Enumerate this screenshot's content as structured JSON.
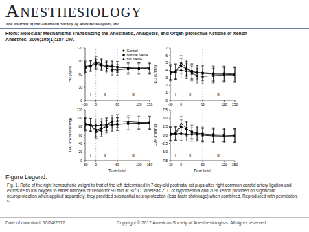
{
  "header": {
    "journal": "Anesthesiology",
    "subtitle": "The Journal of the American Society of Anesthesiologists, Inc."
  },
  "citation": {
    "title": "From: Molecular Mechanisms Transducing the Anesthetic, Analgesic, and Organ-protective Actions of Xenon",
    "reference": "Anesthes. 2006;105(1):187-197."
  },
  "chart_data": [
    {
      "type": "line",
      "y_label": "HR (bpm)",
      "x": [
        -30,
        -15,
        0,
        15,
        30,
        45,
        60,
        90,
        120,
        150
      ],
      "xlim": [
        -30,
        150
      ],
      "xticks": [
        -30,
        0,
        60,
        120,
        150
      ],
      "ylim": [
        0,
        120
      ],
      "yticks": [
        0,
        30,
        60,
        90,
        120
      ],
      "legend": "top-right",
      "reference_lines": [
        0,
        60
      ],
      "annotations": [
        {
          "text": "I",
          "x": -15,
          "y": 12
        },
        {
          "text": "II",
          "x": 25,
          "y": 12
        },
        {
          "text": "III",
          "x": 105,
          "y": 12
        }
      ],
      "series": [
        {
          "name": "Control",
          "color": "#000000",
          "marker": "circle",
          "values": [
            78,
            80,
            82,
            80,
            78,
            78,
            77,
            75,
            74,
            73
          ],
          "errors": [
            12,
            12,
            12,
            12,
            12,
            12,
            12,
            12,
            12,
            12
          ]
        },
        {
          "name": "Normal Saline",
          "color": "#000000",
          "marker": "square",
          "values": [
            76,
            78,
            85,
            82,
            80,
            78,
            76,
            74,
            72,
            72
          ],
          "errors": [
            12,
            12,
            12,
            12,
            12,
            12,
            12,
            12,
            12,
            12
          ]
        },
        {
          "name": "6% Saline",
          "color": "#000000",
          "marker": "triangle",
          "values": [
            75,
            79,
            88,
            84,
            74,
            70,
            70,
            72,
            74,
            75
          ],
          "errors": [
            12,
            12,
            12,
            12,
            12,
            12,
            12,
            12,
            12,
            12
          ]
        }
      ]
    },
    {
      "type": "line",
      "y_label": "CO (L/min)",
      "x": [
        -30,
        -15,
        0,
        15,
        30,
        45,
        60,
        90,
        120,
        150
      ],
      "xlim": [
        -30,
        150
      ],
      "xticks": [
        -30,
        0,
        60,
        120,
        150
      ],
      "ylim": [
        0,
        7
      ],
      "yticks": [
        0,
        1,
        2,
        3,
        4,
        5,
        6,
        7
      ],
      "reference_lines": [
        0,
        60
      ],
      "annotations": [
        {
          "text": "I",
          "x": -15,
          "y": 0.7
        },
        {
          "text": "II",
          "x": 25,
          "y": 0.7
        },
        {
          "text": "III",
          "x": 105,
          "y": 0.7
        }
      ],
      "series": [
        {
          "color": "#000000",
          "marker": "circle",
          "values": [
            3.8,
            3.9,
            4.0,
            3.9,
            3.8,
            3.7,
            3.7,
            3.6,
            3.6,
            3.5
          ],
          "errors": [
            1,
            1,
            1,
            1,
            1,
            1,
            1,
            1,
            1,
            1
          ]
        },
        {
          "color": "#000000",
          "marker": "square",
          "values": [
            3.7,
            3.8,
            4.6,
            4.2,
            3.9,
            3.7,
            3.6,
            3.5,
            3.5,
            3.4
          ],
          "errors": [
            1,
            1,
            1,
            1,
            1,
            1,
            1,
            1,
            1,
            1
          ]
        },
        {
          "color": "#000000",
          "marker": "triangle",
          "values": [
            3.6,
            3.8,
            5.0,
            4.4,
            3.6,
            3.3,
            3.2,
            3.3,
            3.4,
            3.4
          ],
          "errors": [
            1,
            1,
            1,
            1,
            1,
            1,
            1,
            1,
            1,
            1
          ]
        }
      ]
    },
    {
      "type": "line",
      "y_label": "TPC (ml/min/mmHg)",
      "x_label": "Time (min)",
      "x": [
        -30,
        -15,
        0,
        15,
        30,
        45,
        60,
        90,
        120,
        150
      ],
      "xlim": [
        -30,
        150
      ],
      "xticks": [
        -30,
        0,
        60,
        120,
        150
      ],
      "ylim": [
        0,
        120
      ],
      "yticks": [
        0,
        20,
        40,
        60,
        80,
        100,
        120
      ],
      "reference_lines": [
        0,
        60
      ],
      "annotations": [
        {
          "text": "I",
          "x": -15,
          "y": 12
        },
        {
          "text": "II",
          "x": 25,
          "y": 12
        },
        {
          "text": "III",
          "x": 105,
          "y": 12
        }
      ],
      "series": [
        {
          "color": "#000000",
          "marker": "circle",
          "values": [
            85,
            84,
            83,
            84,
            85,
            86,
            86,
            87,
            88,
            88
          ],
          "errors": [
            15,
            15,
            15,
            15,
            15,
            15,
            15,
            15,
            15,
            15
          ]
        },
        {
          "color": "#000000",
          "marker": "square",
          "values": [
            86,
            84,
            72,
            76,
            80,
            84,
            86,
            88,
            88,
            89
          ],
          "errors": [
            15,
            15,
            15,
            15,
            15,
            15,
            15,
            15,
            15,
            15
          ]
        },
        {
          "color": "#000000",
          "marker": "triangle",
          "values": [
            88,
            85,
            68,
            72,
            86,
            92,
            94,
            92,
            90,
            90
          ],
          "errors": [
            15,
            15,
            15,
            15,
            15,
            15,
            15,
            15,
            15,
            15
          ]
        }
      ]
    },
    {
      "type": "line",
      "y_label": "CVP (mmHg)",
      "x_label": "Time (min)",
      "x": [
        -30,
        -15,
        0,
        15,
        30,
        45,
        60,
        90,
        120,
        150
      ],
      "xlim": [
        -30,
        150
      ],
      "xticks": [
        -30,
        0,
        60,
        120,
        150
      ],
      "ylim": [
        -7.5,
        7.5
      ],
      "yticks": [
        {
          "value": -7.5,
          "label": "-7.5"
        },
        {
          "value": -5,
          "label": "-5.0"
        },
        {
          "value": -2.5,
          "label": "-2.5"
        },
        {
          "value": 0,
          "label": "0.0"
        },
        {
          "value": 2.5,
          "label": "2.5"
        },
        {
          "value": 5,
          "label": "5.0"
        },
        {
          "value": 7.5,
          "label": "7.5"
        }
      ],
      "reference_lines": [
        0,
        60
      ],
      "annotations": [
        {
          "text": "I",
          "x": -15,
          "y": -6
        },
        {
          "text": "II",
          "x": 25,
          "y": -6
        },
        {
          "text": "III",
          "x": 105,
          "y": -6
        }
      ],
      "series": [
        {
          "color": "#000000",
          "marker": "circle",
          "values": [
            0.5,
            0.4,
            0.5,
            0.3,
            0.2,
            0.2,
            0.1,
            0.0,
            0.0,
            -0.1
          ],
          "errors": [
            2,
            2,
            2,
            2,
            2,
            2,
            2,
            2,
            2,
            2
          ]
        },
        {
          "color": "#000000",
          "marker": "square",
          "values": [
            0.3,
            0.5,
            2.5,
            1.8,
            1.0,
            0.6,
            0.4,
            0.2,
            0.1,
            0.0
          ],
          "errors": [
            2,
            2,
            2,
            2,
            2,
            2,
            2,
            2,
            2,
            2
          ]
        },
        {
          "color": "#000000",
          "marker": "triangle",
          "values": [
            0.2,
            0.6,
            3.5,
            2.0,
            0.8,
            0.3,
            0.0,
            -0.2,
            -0.3,
            -0.2
          ],
          "errors": [
            2,
            2,
            2,
            2,
            2,
            2,
            2,
            2,
            2,
            2
          ]
        }
      ]
    }
  ],
  "figure_legend": {
    "heading": "Figure Legend:",
    "text": "Fig. 1. Ratio of the right hemispheric weight to that of the left determined in 7-day-old postnatal rat pups after right common carotid artery ligation and exposure to 8% oxygen in either nitrogen or xenon for 90 min at 37° C. Whereas 2° C of hypothermia and 20% xenon provided no significant neuroprotection when applied separately, they provided substantial neuroprotection (less brain shrinkage) when combined. Reproduced with permission.",
    "reference_number": "67"
  },
  "footer": {
    "date": "Date of download:  10/24/2017",
    "copyright": "Copyright © 2017 American Society of Anesthesiologists. All rights reserved."
  }
}
